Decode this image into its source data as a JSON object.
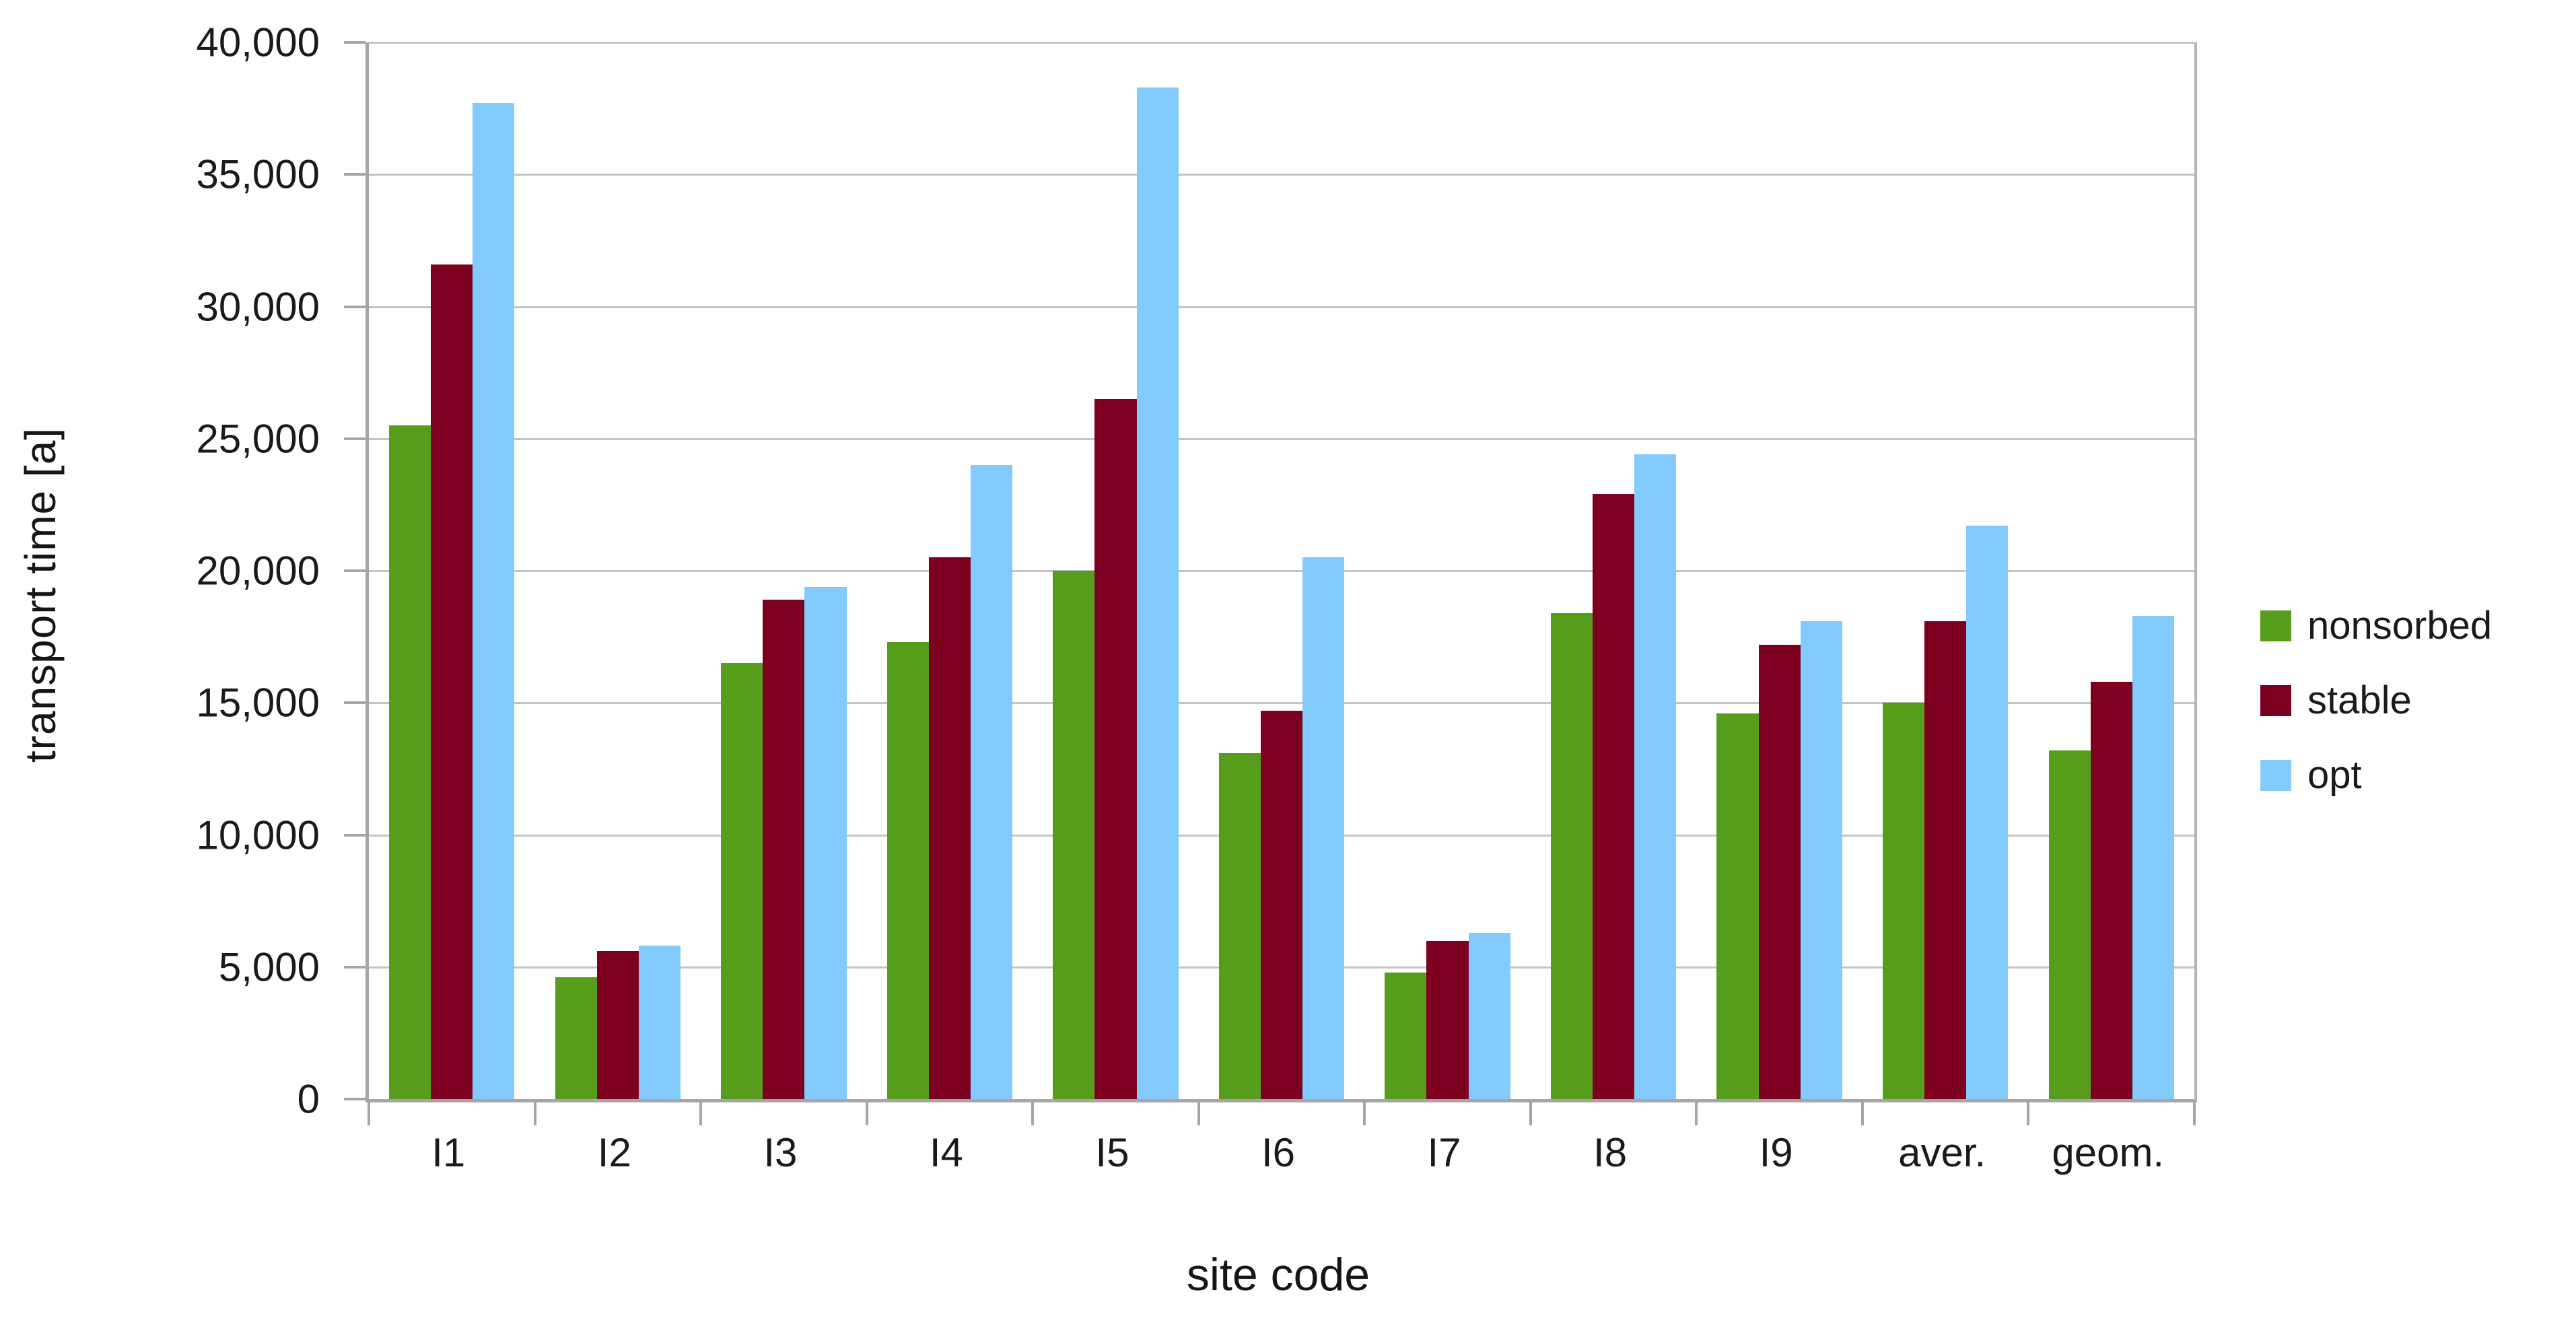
{
  "chart_data": {
    "type": "bar",
    "title": "",
    "xlabel": "site code",
    "ylabel": "transport time [a]",
    "categories": [
      "I1",
      "I2",
      "I3",
      "I4",
      "I5",
      "I6",
      "I7",
      "I8",
      "I9",
      "aver.",
      "geom."
    ],
    "series": [
      {
        "name": "nonsorbed",
        "color": "#579D1C",
        "values": [
          25500,
          4600,
          16500,
          17300,
          20000,
          13100,
          4800,
          18400,
          14600,
          15000,
          13200
        ]
      },
      {
        "name": "stable",
        "color": "#7E0021",
        "values": [
          31600,
          5600,
          18900,
          20500,
          26500,
          14700,
          6000,
          22900,
          17200,
          18100,
          15800
        ]
      },
      {
        "name": "opt",
        "color": "#83CAFF",
        "values": [
          37700,
          5800,
          19400,
          24000,
          38300,
          20500,
          6300,
          24400,
          18100,
          21700,
          18300
        ]
      }
    ],
    "ylim": [
      0,
      40000
    ],
    "ytick_step": 5000,
    "ytick_labels": [
      "0",
      "5,000",
      "10,000",
      "15,000",
      "20,000",
      "25,000",
      "30,000",
      "35,000",
      "40,000"
    ],
    "grid": true,
    "legend_position": "right"
  },
  "colors": {
    "background": "#ffffff",
    "grid": "#c4c4c4",
    "axis": "#a6a6a6",
    "text": "#1a1a1a"
  }
}
